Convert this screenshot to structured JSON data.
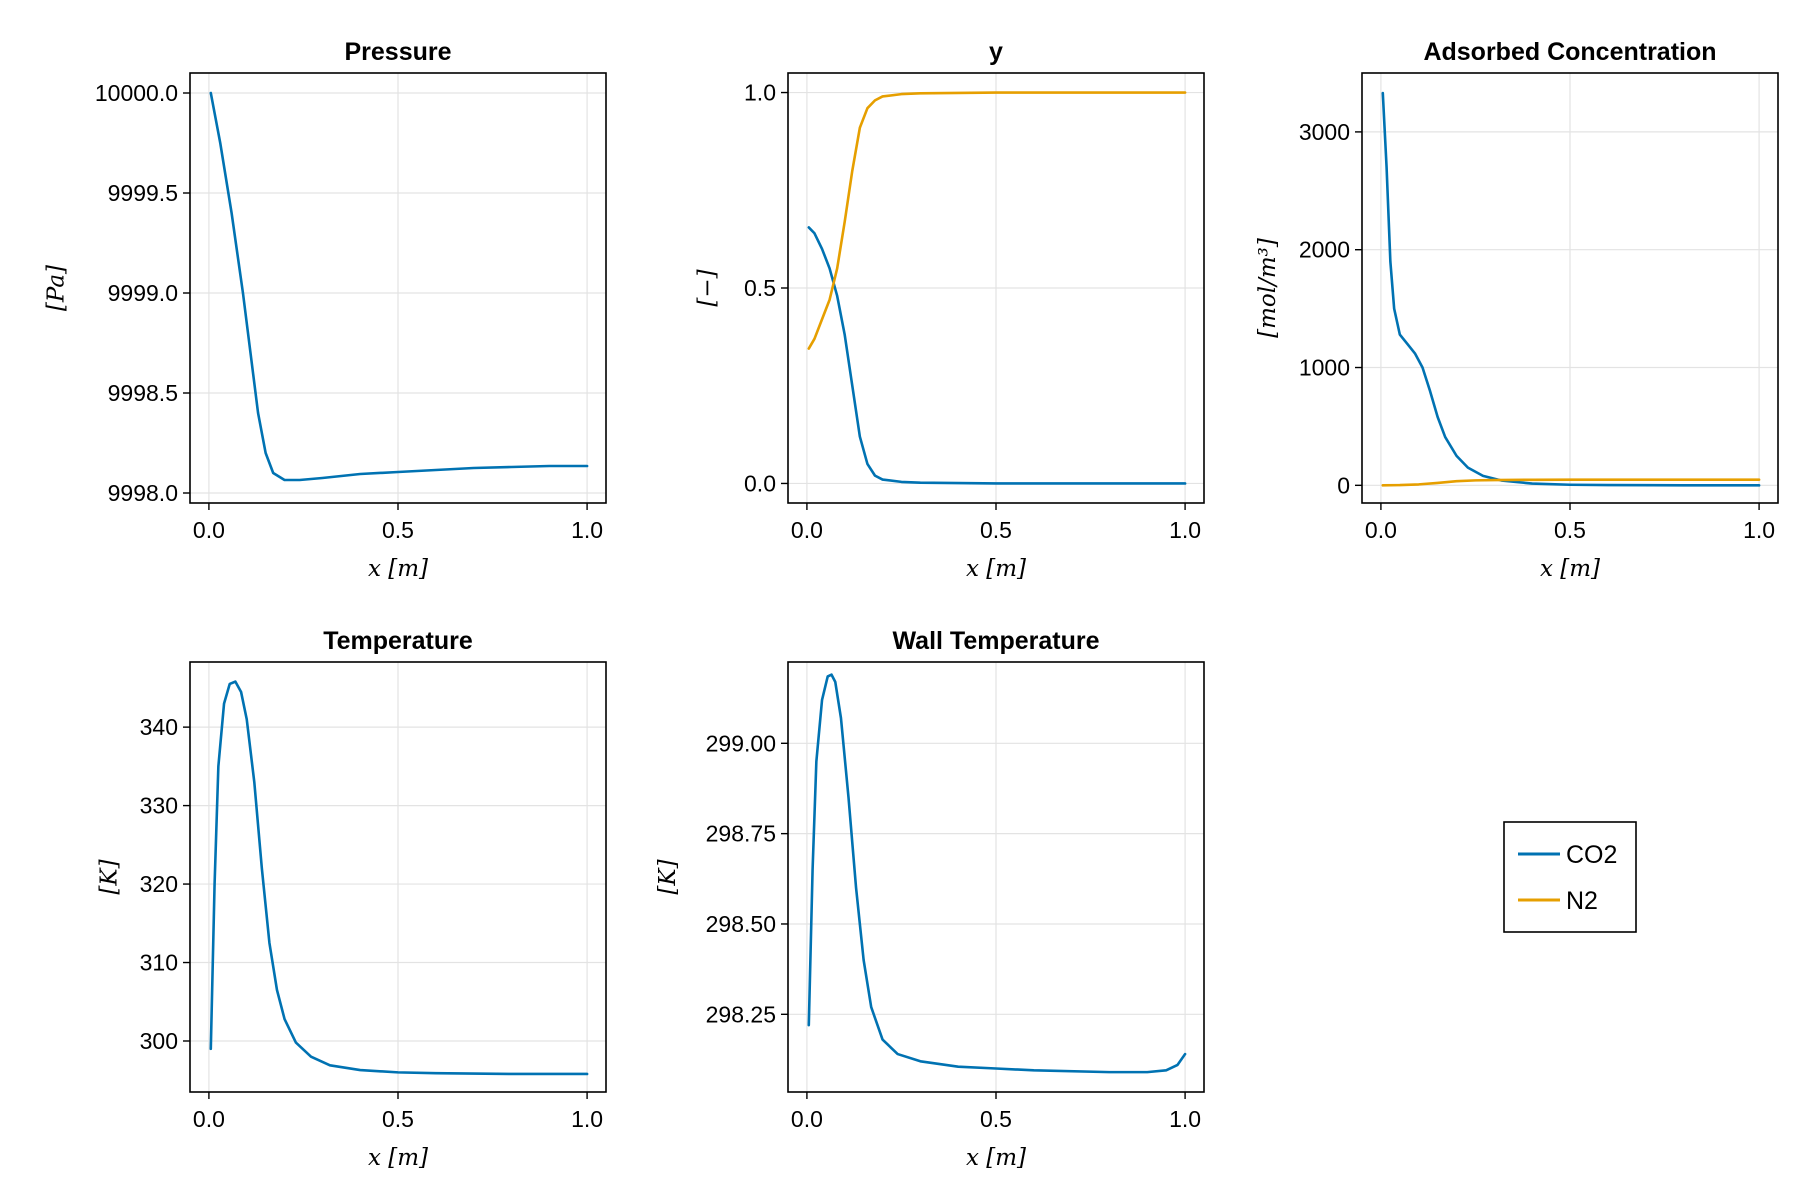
{
  "colors": {
    "co2": "#0072b2",
    "n2": "#e69f00"
  },
  "legend": {
    "entries": [
      {
        "label": "CO2",
        "color": "#0072b2"
      },
      {
        "label": "N2",
        "color": "#e69f00"
      }
    ]
  },
  "chart_data": [
    {
      "type": "line",
      "title": "Pressure",
      "xlabel": "x [m]",
      "ylabel": "[Pa]",
      "xlim": [
        -0.05,
        1.05
      ],
      "ylim": [
        9997.95,
        10000.1
      ],
      "xticks": [
        0.0,
        0.5,
        1.0
      ],
      "xtick_labels": [
        "0.0",
        "0.5",
        "1.0"
      ],
      "yticks": [
        9998.0,
        9998.5,
        9999.0,
        9999.5,
        10000.0
      ],
      "ytick_labels": [
        "9998.0",
        "9998.5",
        "9999.0",
        "9999.5",
        "10000.0"
      ],
      "grid": true,
      "series": [
        {
          "name": "CO2",
          "color": "#0072b2",
          "x": [
            0.005,
            0.03,
            0.06,
            0.09,
            0.11,
            0.13,
            0.15,
            0.17,
            0.2,
            0.24,
            0.3,
            0.4,
            0.5,
            0.6,
            0.7,
            0.8,
            0.9,
            1.0
          ],
          "y": [
            10000.0,
            9999.75,
            9999.4,
            9999.0,
            9998.7,
            9998.4,
            9998.2,
            9998.1,
            9998.065,
            9998.065,
            9998.075,
            9998.095,
            9998.105,
            9998.115,
            9998.125,
            9998.13,
            9998.135,
            9998.135
          ]
        }
      ]
    },
    {
      "type": "line",
      "title": "y",
      "xlabel": "x [m]",
      "ylabel": "[−]",
      "xlim": [
        -0.05,
        1.05
      ],
      "ylim": [
        -0.05,
        1.05
      ],
      "xticks": [
        0.0,
        0.5,
        1.0
      ],
      "xtick_labels": [
        "0.0",
        "0.5",
        "1.0"
      ],
      "yticks": [
        0.0,
        0.5,
        1.0
      ],
      "ytick_labels": [
        "0.0",
        "0.5",
        "1.0"
      ],
      "grid": true,
      "series": [
        {
          "name": "CO2",
          "color": "#0072b2",
          "x": [
            0.005,
            0.02,
            0.04,
            0.06,
            0.08,
            0.1,
            0.12,
            0.14,
            0.16,
            0.18,
            0.2,
            0.25,
            0.3,
            0.4,
            0.5,
            0.7,
            1.0
          ],
          "y": [
            0.655,
            0.64,
            0.6,
            0.55,
            0.48,
            0.38,
            0.25,
            0.12,
            0.05,
            0.02,
            0.01,
            0.004,
            0.002,
            0.001,
            0.0,
            0.0,
            0.0
          ]
        },
        {
          "name": "N2",
          "color": "#e69f00",
          "x": [
            0.005,
            0.02,
            0.04,
            0.06,
            0.08,
            0.1,
            0.12,
            0.14,
            0.16,
            0.18,
            0.2,
            0.25,
            0.3,
            0.4,
            0.5,
            0.7,
            1.0
          ],
          "y": [
            0.345,
            0.37,
            0.42,
            0.47,
            0.55,
            0.67,
            0.8,
            0.91,
            0.96,
            0.98,
            0.99,
            0.996,
            0.998,
            0.999,
            1.0,
            1.0,
            1.0
          ]
        }
      ]
    },
    {
      "type": "line",
      "title": "Adsorbed Concentration",
      "xlabel": "x [m]",
      "ylabel": "[mol/m³]",
      "xlim": [
        -0.05,
        1.05
      ],
      "ylim": [
        -150,
        3500
      ],
      "xticks": [
        0.0,
        0.5,
        1.0
      ],
      "xtick_labels": [
        "0.0",
        "0.5",
        "1.0"
      ],
      "yticks": [
        0,
        1000,
        2000,
        3000
      ],
      "ytick_labels": [
        "0",
        "1000",
        "2000",
        "3000"
      ],
      "grid": true,
      "series": [
        {
          "name": "CO2",
          "color": "#0072b2",
          "x": [
            0.005,
            0.015,
            0.025,
            0.035,
            0.05,
            0.07,
            0.09,
            0.11,
            0.13,
            0.15,
            0.17,
            0.2,
            0.23,
            0.27,
            0.32,
            0.4,
            0.5,
            0.6,
            0.8,
            1.0
          ],
          "y": [
            3330,
            2700,
            1900,
            1500,
            1280,
            1200,
            1120,
            1000,
            800,
            580,
            410,
            250,
            150,
            80,
            40,
            15,
            5,
            2,
            0,
            0
          ]
        },
        {
          "name": "N2",
          "color": "#e69f00",
          "x": [
            0.005,
            0.05,
            0.1,
            0.15,
            0.2,
            0.25,
            0.3,
            0.4,
            0.5,
            0.7,
            1.0
          ],
          "y": [
            0,
            2,
            8,
            20,
            35,
            42,
            45,
            47,
            48,
            48,
            48
          ]
        }
      ]
    },
    {
      "type": "line",
      "title": "Temperature",
      "xlabel": "x [m]",
      "ylabel": "[K]",
      "xlim": [
        -0.05,
        1.05
      ],
      "ylim": [
        293.5,
        348.3
      ],
      "xticks": [
        0.0,
        0.5,
        1.0
      ],
      "xtick_labels": [
        "0.0",
        "0.5",
        "1.0"
      ],
      "yticks": [
        300,
        310,
        320,
        330,
        340
      ],
      "ytick_labels": [
        "300",
        "310",
        "320",
        "330",
        "340"
      ],
      "grid": true,
      "series": [
        {
          "name": "CO2",
          "color": "#0072b2",
          "x": [
            0.005,
            0.015,
            0.025,
            0.04,
            0.055,
            0.07,
            0.085,
            0.1,
            0.12,
            0.14,
            0.16,
            0.18,
            0.2,
            0.23,
            0.27,
            0.32,
            0.4,
            0.5,
            0.6,
            0.8,
            1.0
          ],
          "y": [
            299.0,
            320.0,
            335.0,
            343.0,
            345.5,
            345.8,
            344.5,
            341.0,
            333.0,
            322.0,
            312.5,
            306.5,
            302.8,
            299.8,
            298.0,
            296.9,
            296.3,
            296.0,
            295.9,
            295.8,
            295.8
          ]
        }
      ]
    },
    {
      "type": "line",
      "title": "Wall Temperature",
      "xlabel": "x [m]",
      "ylabel": "[K]",
      "xlim": [
        -0.05,
        1.05
      ],
      "ylim": [
        298.035,
        299.225
      ],
      "xticks": [
        0.0,
        0.5,
        1.0
      ],
      "xtick_labels": [
        "0.0",
        "0.5",
        "1.0"
      ],
      "yticks": [
        298.25,
        298.5,
        298.75,
        299.0
      ],
      "ytick_labels": [
        "298.25",
        "298.50",
        "298.75",
        "299.00"
      ],
      "grid": true,
      "series": [
        {
          "name": "CO2",
          "color": "#0072b2",
          "x": [
            0.005,
            0.015,
            0.025,
            0.04,
            0.055,
            0.065,
            0.075,
            0.09,
            0.11,
            0.13,
            0.15,
            0.17,
            0.2,
            0.24,
            0.3,
            0.4,
            0.5,
            0.6,
            0.8,
            0.9,
            0.95,
            0.98,
            1.0
          ],
          "y": [
            298.22,
            298.65,
            298.95,
            299.12,
            299.185,
            299.19,
            299.17,
            299.07,
            298.85,
            298.6,
            298.4,
            298.27,
            298.18,
            298.14,
            298.12,
            298.105,
            298.1,
            298.095,
            298.09,
            298.09,
            298.095,
            298.11,
            298.14
          ]
        }
      ]
    }
  ]
}
